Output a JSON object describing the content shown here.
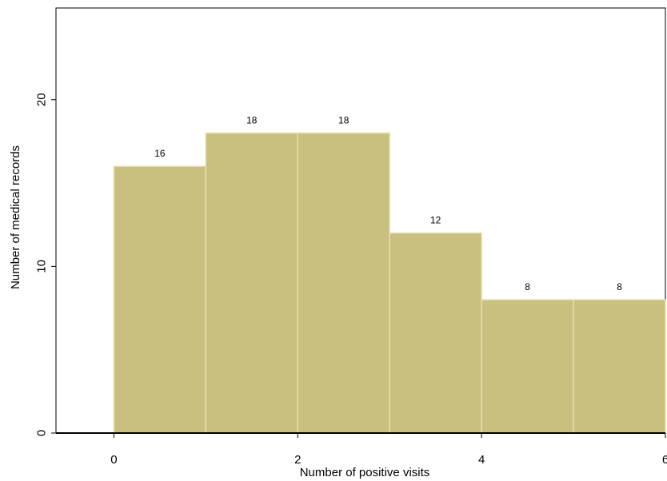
{
  "chart_data": {
    "type": "bar",
    "title": "",
    "xlabel": "Number of positive visits",
    "ylabel": "Number of medical records",
    "bins": [
      [
        0,
        1
      ],
      [
        1,
        2
      ],
      [
        2,
        3
      ],
      [
        3,
        4
      ],
      [
        4,
        5
      ],
      [
        5,
        6
      ]
    ],
    "values": [
      16,
      18,
      18,
      12,
      8,
      8
    ],
    "data_labels": [
      "16",
      "18",
      "18",
      "12",
      "8",
      "8"
    ],
    "xlim": [
      -0.63,
      6
    ],
    "ylim": [
      0,
      25.5
    ],
    "x_ticks": [
      0,
      2,
      4,
      6
    ],
    "x_tick_labels": [
      "0",
      "2",
      "4",
      "6"
    ],
    "y_ticks": [
      0,
      10,
      20
    ],
    "y_tick_labels": [
      "0",
      "10",
      "20"
    ],
    "grid": false,
    "legend": "none",
    "colors": {
      "bar_fill": "#c9c07f",
      "bar_edge": "#e6dfae",
      "axis": "#000000"
    }
  }
}
